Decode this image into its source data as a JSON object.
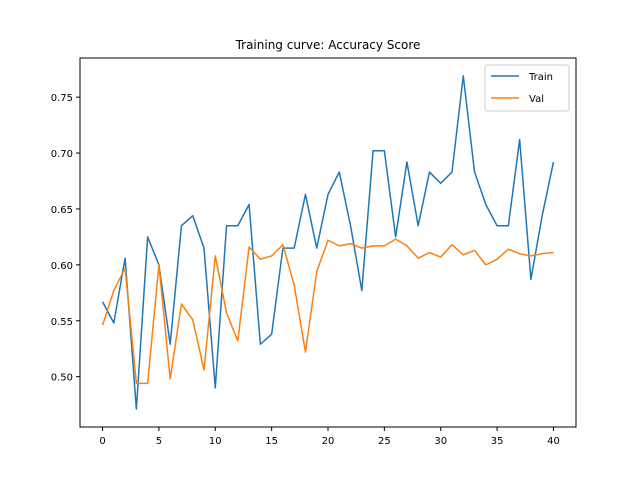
{
  "chart_data": {
    "type": "line",
    "title": "Training curve: Accuracy Score",
    "xlabel": "",
    "ylabel": "",
    "xlim": [
      -2,
      42
    ],
    "ylim": [
      0.455,
      0.785
    ],
    "xticks": [
      0,
      5,
      10,
      15,
      20,
      25,
      30,
      35,
      40
    ],
    "yticks": [
      0.5,
      0.55,
      0.6,
      0.65,
      0.7,
      0.75
    ],
    "grid": false,
    "legend_position": "top-right",
    "x": [
      0,
      1,
      2,
      3,
      4,
      5,
      6,
      7,
      8,
      9,
      10,
      11,
      12,
      13,
      14,
      15,
      16,
      17,
      18,
      19,
      20,
      21,
      22,
      23,
      24,
      25,
      26,
      27,
      28,
      29,
      30,
      31,
      32,
      33,
      34,
      35,
      36,
      37,
      38,
      39,
      40
    ],
    "series": [
      {
        "name": "Train",
        "color": "#1f77b4",
        "values": [
          0.567,
          0.548,
          0.606,
          0.471,
          0.625,
          0.6,
          0.529,
          0.635,
          0.644,
          0.615,
          0.49,
          0.635,
          0.635,
          0.654,
          0.529,
          0.538,
          0.615,
          0.615,
          0.663,
          0.615,
          0.663,
          0.683,
          0.635,
          0.577,
          0.702,
          0.702,
          0.625,
          0.692,
          0.635,
          0.683,
          0.673,
          0.683,
          0.769,
          0.683,
          0.654,
          0.635,
          0.635,
          0.712,
          0.587,
          0.644,
          0.692
        ]
      },
      {
        "name": "Val",
        "color": "#ff7f0e",
        "values": [
          0.546,
          0.577,
          0.597,
          0.494,
          0.494,
          0.6,
          0.498,
          0.565,
          0.551,
          0.506,
          0.608,
          0.557,
          0.532,
          0.616,
          0.605,
          0.608,
          0.618,
          0.582,
          0.522,
          0.594,
          0.622,
          0.617,
          0.619,
          0.615,
          0.617,
          0.617,
          0.623,
          0.617,
          0.606,
          0.611,
          0.607,
          0.618,
          0.609,
          0.613,
          0.6,
          0.605,
          0.614,
          0.61,
          0.608,
          0.61,
          0.611
        ]
      }
    ]
  }
}
